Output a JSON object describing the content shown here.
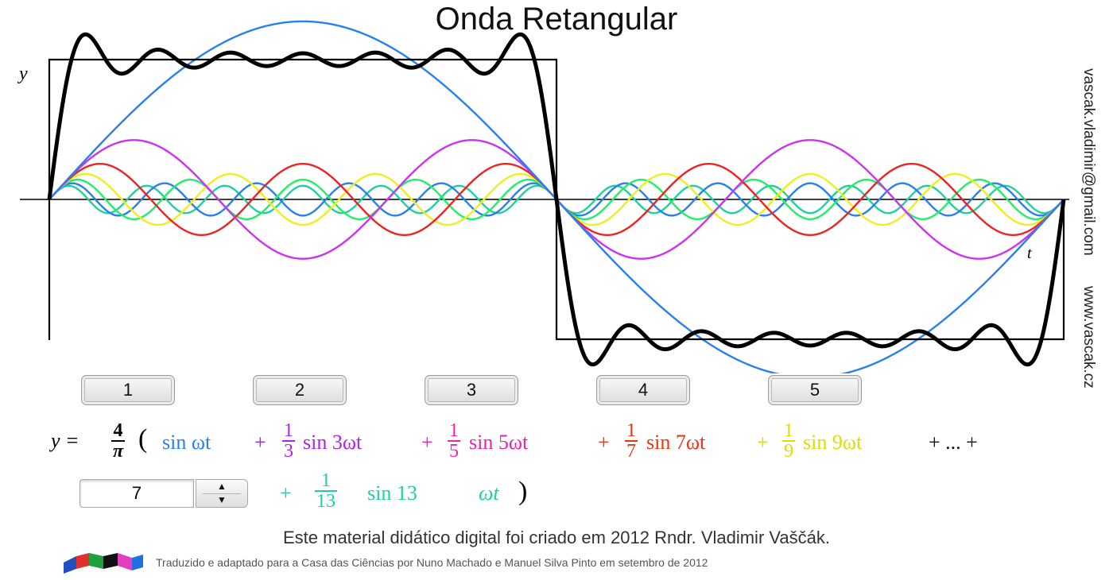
{
  "title": "Onda Retangular",
  "axis": {
    "y_label": "y",
    "t_label": "t"
  },
  "side_text": {
    "email": "vascak.vladimir@gmail.com",
    "website": "www.vascak.cz"
  },
  "harmonic_buttons": [
    "1",
    "2",
    "3",
    "4",
    "5"
  ],
  "formula": {
    "lhs": "y =",
    "coef_num": "4",
    "coef_den": "π",
    "open_paren": "(",
    "term1": "sin ωt",
    "term2_plus": "+",
    "term2_num": "1",
    "term2_den": "3",
    "term2_fn": "sin 3ωt",
    "term3_plus": "+",
    "term3_num": "1",
    "term3_den": "5",
    "term3_fn": "sin 5ωt",
    "term4_plus": "+",
    "term4_num": "1",
    "term4_den": "7",
    "term4_fn": "sin 7ωt",
    "term5_plus": "+",
    "term5_num": "1",
    "term5_den": "9",
    "term5_fn": "sin 9ωt",
    "ellipsis": "+ ... +",
    "last_plus": "+",
    "last_num": "1",
    "last_den": "13",
    "last_fn": "sin 13",
    "last_var": "ωt",
    "close_paren": ")"
  },
  "stepper": {
    "value": "7",
    "up": "▲",
    "down": "▼"
  },
  "footer": {
    "credit": "Este material didático digital foi criado em 2012 Rndr. Vladimir Vaščák.",
    "translation": "Traduzido e adaptado para a Casa das Ciências por Nuno Machado e Manuel Silva Pinto em setembro de 2012"
  },
  "colors": {
    "sum": "#000000",
    "square": "#000000",
    "h1": "#2a7ff0",
    "h3": "#cc33ee",
    "h5": "#ee2222",
    "h7": "#eeee22",
    "h9": "#22ee66",
    "h11": "#2a7ff0",
    "h13": "#20d0a0",
    "term1": "#2a7ff0",
    "term2": "#aa22ee",
    "term3": "#ee22aa",
    "term4": "#ee3311",
    "term5": "#dddd00",
    "last": "#20d0a0"
  },
  "chart_data": {
    "type": "line",
    "description_free": true,
    "harmonics": [
      1,
      3,
      5,
      7,
      9,
      11,
      13
    ],
    "amplitude_scale": 1.2732,
    "x_range": [
      0,
      2
    ],
    "square_wave_level": 1,
    "series": [
      {
        "n": 1,
        "weight": 1.0
      },
      {
        "n": 3,
        "weight": 0.3333
      },
      {
        "n": 5,
        "weight": 0.2
      },
      {
        "n": 7,
        "weight": 0.1429
      },
      {
        "n": 9,
        "weight": 0.1111
      },
      {
        "n": 11,
        "weight": 0.0909
      },
      {
        "n": 13,
        "weight": 0.0769
      }
    ]
  }
}
